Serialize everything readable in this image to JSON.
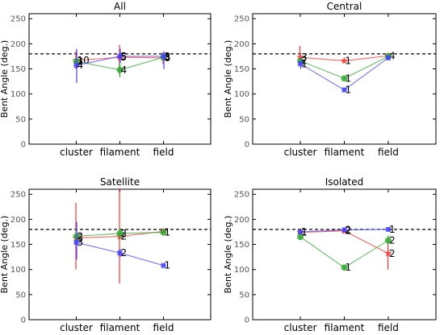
{
  "chart_data": [
    {
      "type": "line",
      "title": "All",
      "ylabel": "Bent Angle (deg.)",
      "xlabel": "",
      "categories": [
        "cluster",
        "filament",
        "field"
      ],
      "ylim": [
        0,
        260
      ],
      "yticks": [
        0,
        50,
        100,
        150,
        200,
        250
      ],
      "reference_line": 180,
      "series": [
        {
          "color": "#ff3333",
          "marker": "star",
          "values": [
            167,
            173,
            172
          ],
          "err_low": [
            150,
            140,
            160
          ],
          "err_high": [
            185,
            198,
            183
          ],
          "labels": [
            "10",
            "5",
            "6"
          ]
        },
        {
          "color": "#33aa33",
          "marker": "circle",
          "values": [
            165,
            148,
            173
          ],
          "err_low": [
            160,
            133,
            165
          ],
          "err_high": [
            170,
            162,
            183
          ],
          "labels": [
            "3",
            "4",
            "3"
          ]
        },
        {
          "color": "#4444ff",
          "marker": "square",
          "values": [
            157,
            175,
            175
          ],
          "err_low": [
            122,
            162,
            150
          ],
          "err_high": [
            190,
            190,
            185
          ],
          "labels": [
            "4",
            "5",
            "3"
          ]
        }
      ]
    },
    {
      "type": "line",
      "title": "Central",
      "ylabel": "Bent Angle (deg.)",
      "xlabel": "",
      "categories": [
        "cluster",
        "filament",
        "field"
      ],
      "ylim": [
        0,
        260
      ],
      "yticks": [
        0,
        50,
        100,
        150,
        200,
        250
      ],
      "reference_line": 180,
      "series": [
        {
          "color": "#ff3333",
          "marker": "star",
          "values": [
            173,
            166,
            176
          ],
          "err_low": [
            158,
            163,
            173
          ],
          "err_high": [
            196,
            170,
            180
          ],
          "labels": [
            "3",
            "1",
            "4"
          ]
        },
        {
          "color": "#33aa33",
          "marker": "circle",
          "values": [
            166,
            131,
            175
          ],
          "err_low": [
            162,
            128,
            170
          ],
          "err_high": [
            172,
            135,
            180
          ],
          "labels": [
            "2",
            "1",
            ""
          ]
        },
        {
          "color": "#4444ff",
          "marker": "square",
          "values": [
            160,
            108,
            172
          ],
          "err_low": [
            150,
            105,
            168
          ],
          "err_high": [
            170,
            112,
            176
          ],
          "labels": [
            "1",
            "1",
            ""
          ]
        }
      ]
    },
    {
      "type": "line",
      "title": "Satellite",
      "ylabel": "Bent Angle (deg.)",
      "xlabel": "",
      "categories": [
        "cluster",
        "filament",
        "field"
      ],
      "ylim": [
        0,
        260
      ],
      "yticks": [
        0,
        50,
        100,
        150,
        200,
        250
      ],
      "reference_line": 180,
      "series": [
        {
          "color": "#ff3333",
          "marker": "star",
          "values": [
            163,
            166,
            176
          ],
          "err_low": [
            100,
            72,
            172
          ],
          "err_high": [
            233,
            262,
            180
          ],
          "labels": [
            "5",
            "2",
            ""
          ]
        },
        {
          "color": "#33aa33",
          "marker": "circle",
          "values": [
            166,
            172,
            174
          ],
          "err_low": [
            150,
            160,
            170
          ],
          "err_high": [
            182,
            182,
            178
          ],
          "labels": [
            "2",
            "2",
            "1"
          ]
        },
        {
          "color": "#4444ff",
          "marker": "square",
          "values": [
            154,
            133,
            108
          ],
          "err_low": [
            120,
            125,
            105
          ],
          "err_high": [
            195,
            140,
            112
          ],
          "labels": [
            "3",
            "2",
            "1"
          ]
        }
      ]
    },
    {
      "type": "line",
      "title": "Isolated",
      "ylabel": "Bent Angle (deg.)",
      "xlabel": "",
      "categories": [
        "cluster",
        "filament",
        "field"
      ],
      "ylim": [
        0,
        260
      ],
      "yticks": [
        0,
        50,
        100,
        150,
        200,
        250
      ],
      "reference_line": 180,
      "series": [
        {
          "color": "#ff3333",
          "marker": "star",
          "values": [
            174,
            177,
            132
          ],
          "err_low": [
            170,
            172,
            100
          ],
          "err_high": [
            178,
            182,
            160
          ],
          "labels": [
            "1",
            "2",
            "2"
          ]
        },
        {
          "color": "#33aa33",
          "marker": "circle",
          "values": [
            165,
            104,
            158
          ],
          "err_low": [
            160,
            100,
            150
          ],
          "err_high": [
            170,
            108,
            168
          ],
          "labels": [
            "",
            "1",
            "2"
          ]
        },
        {
          "color": "#4444ff",
          "marker": "square",
          "values": [
            175,
            179,
            180
          ],
          "err_low": [
            171,
            175,
            176
          ],
          "err_high": [
            179,
            183,
            184
          ],
          "labels": [
            "1",
            "2",
            "1"
          ]
        }
      ]
    }
  ]
}
